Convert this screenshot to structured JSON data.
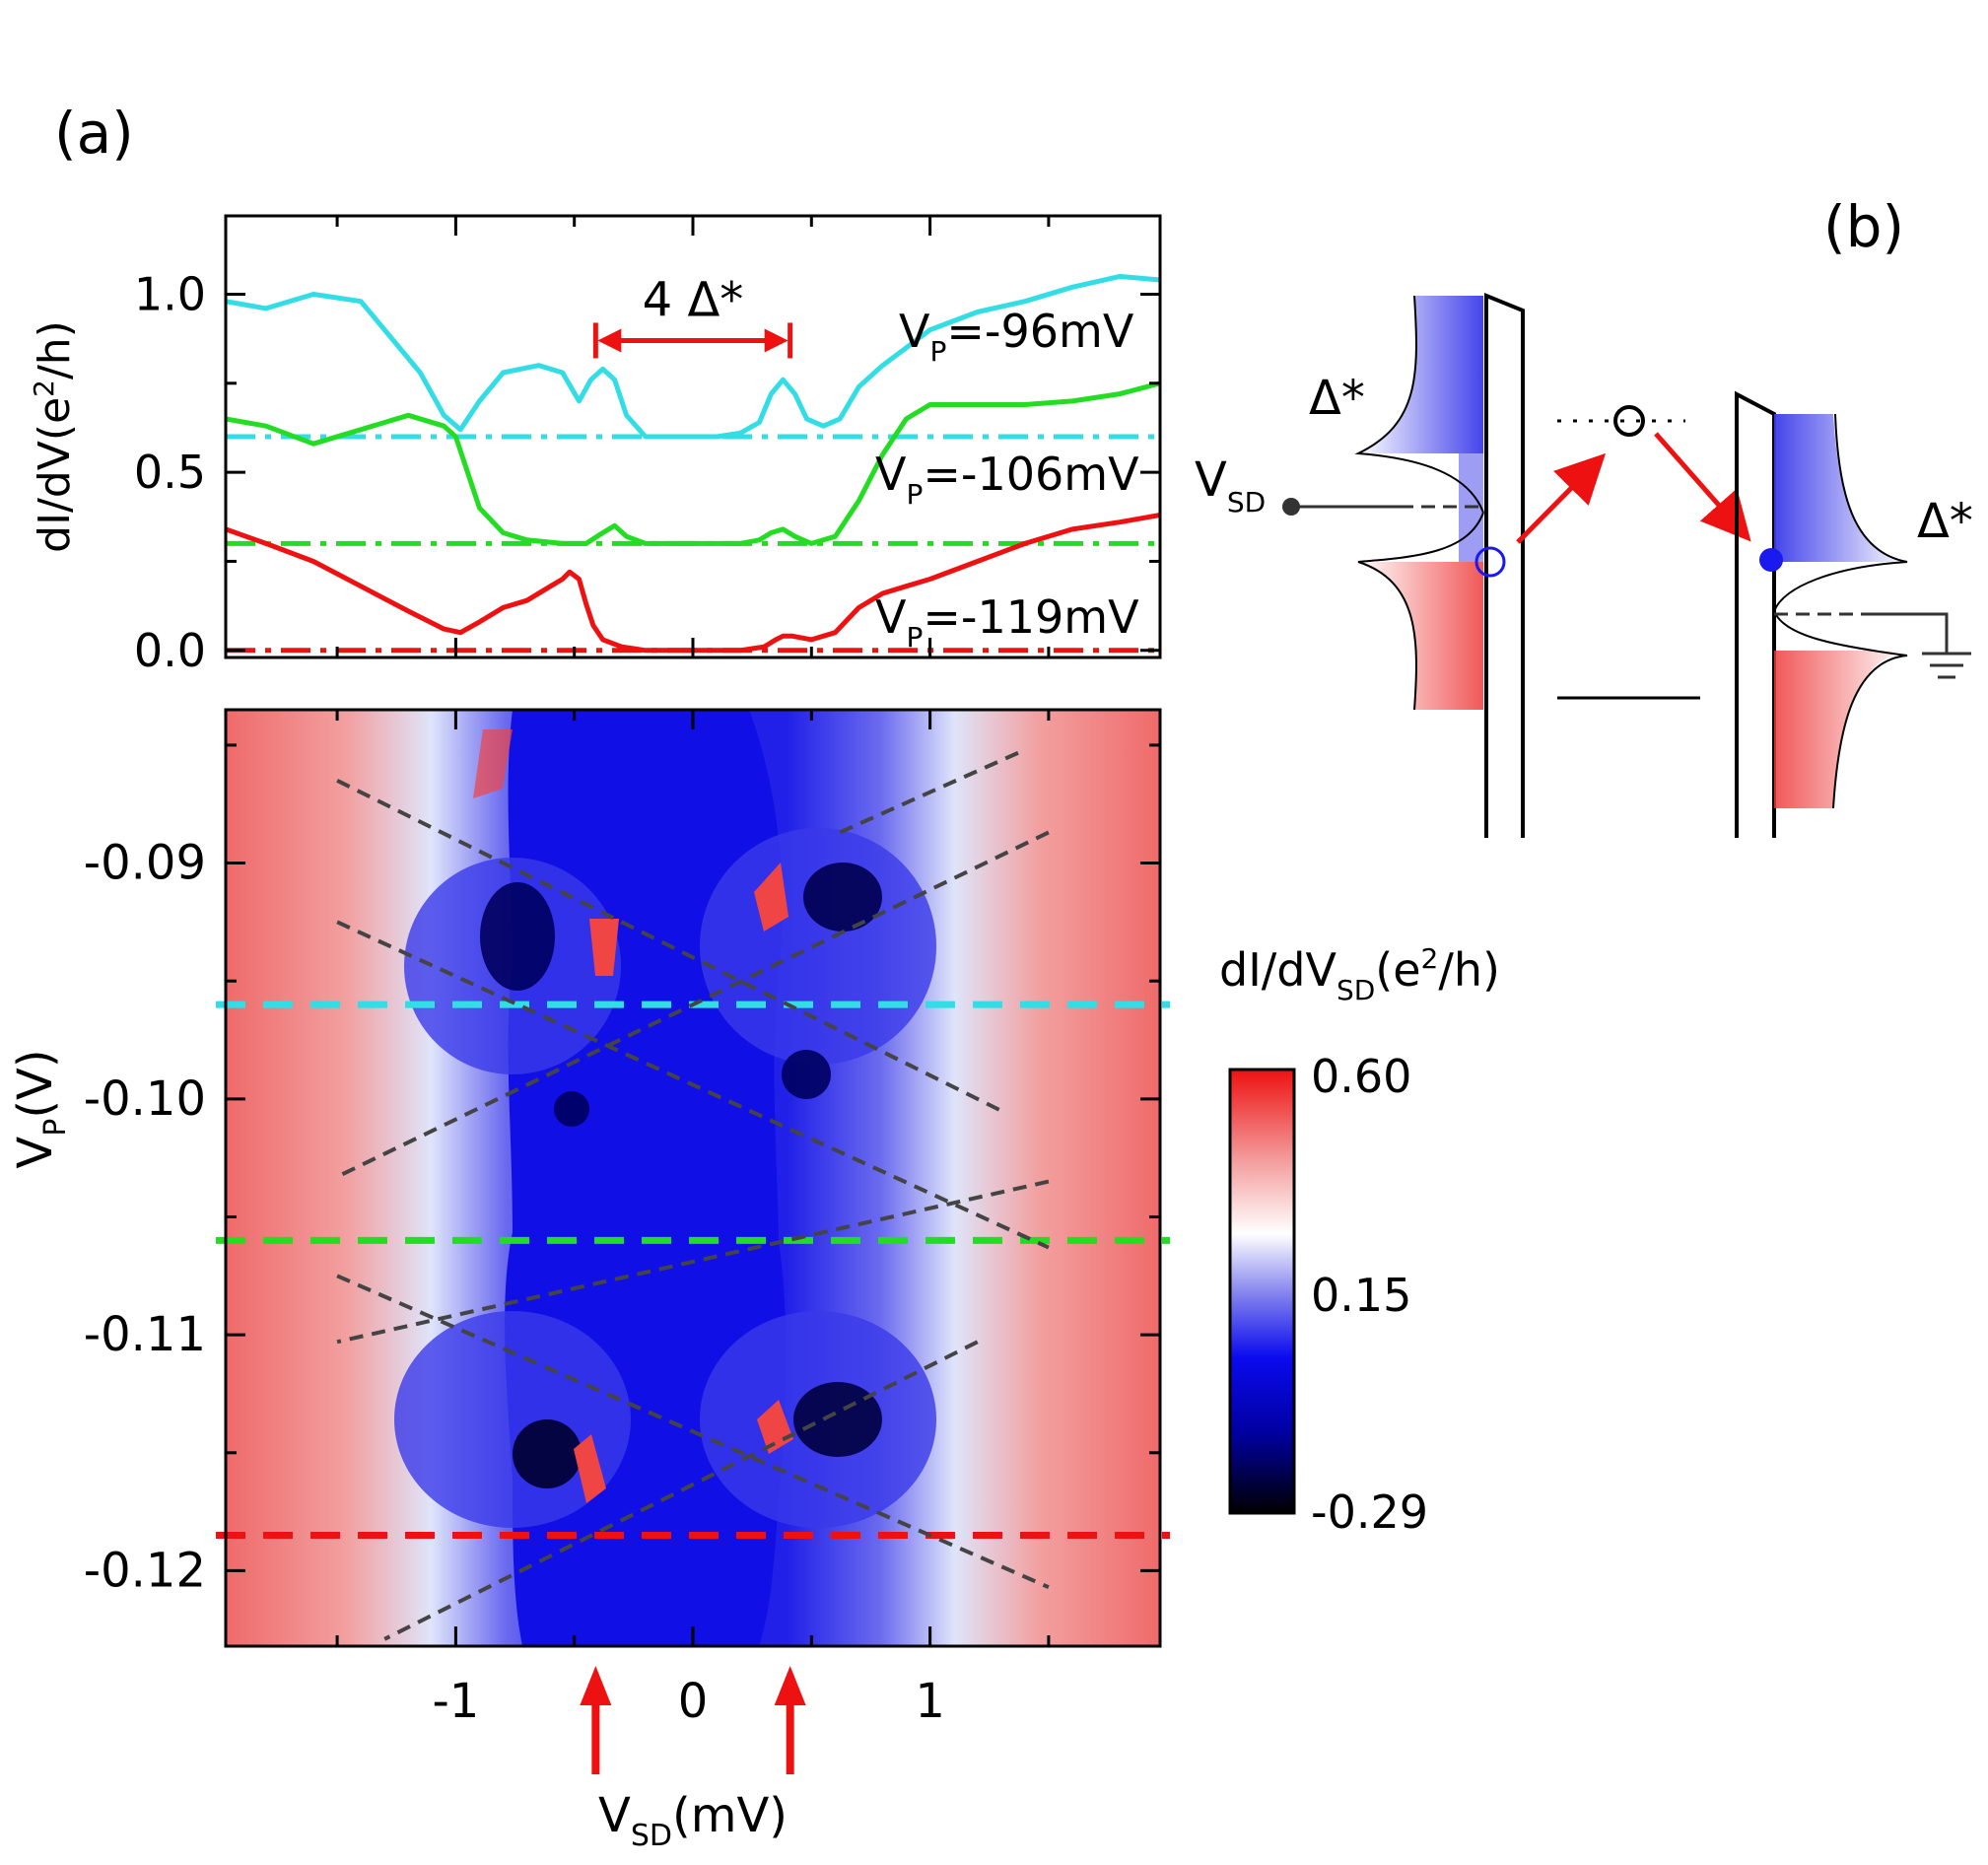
{
  "panel_labels": {
    "a": "(a)",
    "b": "(b)"
  },
  "colors": {
    "cyan": "#33dde6",
    "green": "#22dd22",
    "red": "#ee1111",
    "arrow": "#ee1111",
    "dash_gray": "#444444",
    "cmap_low": "#000000",
    "cmap_mid_blue": "#0000ee",
    "cmap_white": "#ffffff",
    "cmap_high": "#ee1111"
  },
  "chart_data": [
    {
      "type": "line",
      "panel": "(a) top",
      "xlim": [
        -1.97,
        1.97
      ],
      "ylim": [
        -0.02,
        1.22
      ],
      "xticks": [
        -1,
        0,
        1
      ],
      "yticks": [
        {
          "value": 0.0,
          "label": "0.0"
        },
        {
          "value": 0.5,
          "label": "0.5"
        },
        {
          "value": 1.0,
          "label": "1.0"
        }
      ],
      "ylabel_main": "dI/dV(e",
      "ylabel_sup": "2",
      "ylabel_tail": "/h)",
      "annotation": {
        "text": "4 Δ*",
        "x_from": -0.41,
        "x_to": 0.41,
        "y": 0.87
      },
      "series": [
        {
          "name_main": "V",
          "name_sub": "P",
          "name_tail": "=-96mV",
          "color": "#33dde6",
          "baseline": 0.6,
          "x": [
            -1.97,
            -1.8,
            -1.6,
            -1.4,
            -1.3,
            -1.15,
            -1.05,
            -0.98,
            -0.9,
            -0.8,
            -0.65,
            -0.55,
            -0.48,
            -0.43,
            -0.38,
            -0.33,
            -0.28,
            -0.2,
            -0.1,
            0.0,
            0.1,
            0.2,
            0.28,
            0.33,
            0.38,
            0.43,
            0.48,
            0.55,
            0.62,
            0.7,
            0.8,
            0.9,
            1.0,
            1.2,
            1.4,
            1.6,
            1.8,
            1.97
          ],
          "y": [
            0.98,
            0.96,
            1.0,
            0.98,
            0.9,
            0.78,
            0.66,
            0.62,
            0.7,
            0.78,
            0.8,
            0.78,
            0.7,
            0.76,
            0.79,
            0.76,
            0.66,
            0.6,
            0.6,
            0.6,
            0.6,
            0.61,
            0.64,
            0.72,
            0.76,
            0.72,
            0.65,
            0.63,
            0.65,
            0.74,
            0.8,
            0.85,
            0.9,
            0.95,
            0.98,
            1.02,
            1.05,
            1.04
          ]
        },
        {
          "name_main": "V",
          "name_sub": "P",
          "name_tail": "=-106mV",
          "color": "#22dd22",
          "baseline": 0.3,
          "x": [
            -1.97,
            -1.8,
            -1.6,
            -1.4,
            -1.2,
            -1.05,
            -1.0,
            -0.95,
            -0.9,
            -0.8,
            -0.7,
            -0.55,
            -0.45,
            -0.38,
            -0.33,
            -0.28,
            -0.2,
            0.0,
            0.2,
            0.28,
            0.33,
            0.38,
            0.43,
            0.5,
            0.6,
            0.7,
            0.8,
            0.9,
            1.0,
            1.2,
            1.4,
            1.6,
            1.8,
            1.97
          ],
          "y": [
            0.65,
            0.63,
            0.58,
            0.62,
            0.66,
            0.63,
            0.6,
            0.5,
            0.4,
            0.33,
            0.31,
            0.3,
            0.3,
            0.33,
            0.35,
            0.32,
            0.3,
            0.3,
            0.3,
            0.31,
            0.33,
            0.34,
            0.32,
            0.3,
            0.32,
            0.42,
            0.55,
            0.65,
            0.69,
            0.69,
            0.69,
            0.7,
            0.72,
            0.75
          ]
        },
        {
          "name_main": "V",
          "name_sub": "P",
          "name_tail": "=-119mV",
          "color": "#ee1111",
          "baseline": 0.0,
          "x": [
            -1.97,
            -1.8,
            -1.6,
            -1.4,
            -1.2,
            -1.05,
            -0.98,
            -0.9,
            -0.8,
            -0.7,
            -0.6,
            -0.55,
            -0.52,
            -0.48,
            -0.45,
            -0.42,
            -0.38,
            -0.3,
            -0.2,
            0.0,
            0.2,
            0.3,
            0.35,
            0.38,
            0.42,
            0.5,
            0.6,
            0.7,
            0.8,
            0.9,
            1.0,
            1.2,
            1.4,
            1.6,
            1.8,
            1.97
          ],
          "y": [
            0.34,
            0.3,
            0.25,
            0.18,
            0.11,
            0.06,
            0.05,
            0.08,
            0.12,
            0.14,
            0.18,
            0.2,
            0.22,
            0.2,
            0.13,
            0.07,
            0.03,
            0.01,
            0.0,
            0.0,
            0.0,
            0.01,
            0.03,
            0.04,
            0.04,
            0.03,
            0.05,
            0.12,
            0.16,
            0.18,
            0.2,
            0.25,
            0.3,
            0.34,
            0.36,
            0.38
          ]
        }
      ]
    },
    {
      "type": "heatmap",
      "panel": "(a) bottom",
      "xlim": [
        -1.97,
        1.97
      ],
      "ylim": [
        -0.1232,
        -0.0835
      ],
      "xticks": [
        {
          "value": -1,
          "label": "-1"
        },
        {
          "value": 0,
          "label": "0"
        },
        {
          "value": 1,
          "label": "1"
        }
      ],
      "yticks": [
        {
          "value": -0.09,
          "label": "-0.09"
        },
        {
          "value": -0.1,
          "label": "-0.10"
        },
        {
          "value": -0.11,
          "label": "-0.11"
        },
        {
          "value": -0.12,
          "label": "-0.12"
        }
      ],
      "xlabel_main": "V",
      "xlabel_sub": "SD",
      "xlabel_tail": "(mV)",
      "ylabel_main": "V",
      "ylabel_sub": "P",
      "ylabel_tail": "(V)",
      "cut_lines": [
        {
          "vp": -0.096,
          "color": "#33dde6"
        },
        {
          "vp": -0.106,
          "color": "#22dd22"
        },
        {
          "vp": -0.1185,
          "color": "#ee1111"
        }
      ],
      "arrow_markers_x": [
        -0.41,
        0.41
      ],
      "diamond_guides": [
        {
          "x1": -1.5,
          "y1": -0.0865,
          "x2": 1.3,
          "y2": -0.1005
        },
        {
          "x1": 0.62,
          "y1": -0.0887,
          "x2": 1.4,
          "y2": -0.0852
        },
        {
          "x1": 1.5,
          "y1": -0.0887,
          "x2": -1.5,
          "y2": -0.1033
        },
        {
          "x1": -1.5,
          "y1": -0.0925,
          "x2": 1.5,
          "y2": -0.1063
        },
        {
          "x1": 1.5,
          "y1": -0.1035,
          "x2": -1.5,
          "y2": -0.1103
        },
        {
          "x1": -1.5,
          "y1": -0.1075,
          "x2": 1.5,
          "y2": -0.1207
        },
        {
          "x1": 1.2,
          "y1": -0.1103,
          "x2": -1.3,
          "y2": -0.1229
        }
      ],
      "colorbar": {
        "label_main": "dI/dV",
        "label_sub": "SD",
        "label_open": "(e",
        "label_sup": "2",
        "label_close": "/h)",
        "ticks": [
          "0.60",
          "0.15",
          "-0.29"
        ]
      }
    }
  ],
  "diagram_b": {
    "delta_left": "Δ*",
    "delta_right": "Δ*",
    "vsd_main": "V",
    "vsd_sub": "SD"
  }
}
